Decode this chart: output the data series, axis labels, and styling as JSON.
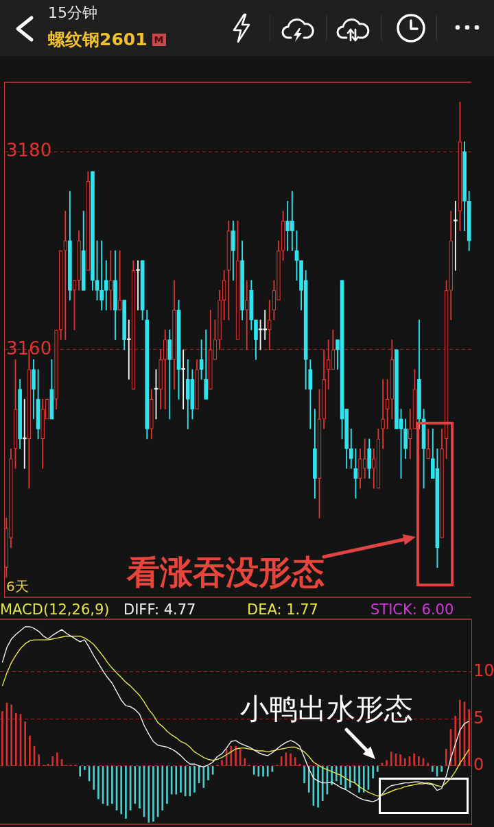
{
  "chart_data": [
    {
      "type": "candlestick",
      "title": "螺纹钢2601",
      "subtitle": "15分钟",
      "categories": [
        null,
        null,
        null,
        null,
        null,
        null,
        null,
        null,
        null,
        null,
        null,
        null,
        null,
        null,
        null,
        null,
        null,
        null,
        null,
        null,
        null,
        null,
        null,
        null,
        null,
        null,
        null,
        null,
        null,
        null,
        null,
        null,
        null,
        null,
        null,
        null,
        null,
        null,
        null,
        null,
        null,
        null,
        null,
        null,
        null,
        null,
        null,
        null,
        null,
        null,
        null,
        null,
        null,
        null,
        null,
        null,
        null,
        null,
        null,
        null,
        null,
        null,
        null,
        null,
        null,
        null,
        null,
        null,
        null,
        null,
        null,
        null,
        null,
        null,
        null,
        null,
        null,
        null,
        null,
        null,
        null,
        null,
        null,
        null,
        null,
        null,
        null,
        null,
        null,
        null,
        null,
        null,
        null,
        null,
        null,
        null,
        null,
        null,
        null,
        null,
        null,
        null,
        null
      ],
      "ohlc": [
        [
          3138,
          3143,
          3137,
          3142
        ],
        [
          3141,
          3150,
          3140,
          3149
        ],
        [
          3150,
          3159,
          3148,
          3154
        ],
        [
          3156,
          3157,
          3150,
          3151
        ],
        [
          3151,
          3155,
          3148,
          3151
        ],
        [
          3151,
          3160,
          3146,
          3158
        ],
        [
          3158,
          3159,
          3153,
          3156
        ],
        [
          3155,
          3158,
          3151,
          3152
        ],
        [
          3151,
          3155,
          3148,
          3154
        ],
        [
          3153,
          3155,
          3153,
          3155
        ],
        [
          3156,
          3159,
          3153,
          3153
        ],
        [
          3155,
          3162,
          3154,
          3162
        ],
        [
          3162,
          3170,
          3161,
          3170
        ],
        [
          3170,
          3174,
          3161,
          3171
        ],
        [
          3171,
          3176,
          3165,
          3166
        ],
        [
          3166,
          3167,
          3162,
          3167
        ],
        [
          3167,
          3172,
          3166,
          3171
        ],
        [
          3170,
          3174,
          3166,
          3166
        ],
        [
          3168,
          3178,
          3168,
          3177
        ],
        [
          3178,
          3178,
          3166,
          3167
        ],
        [
          3167,
          3171,
          3165,
          3166
        ],
        [
          3166,
          3171,
          3164,
          3165
        ],
        [
          3167,
          3169,
          3164,
          3166
        ],
        [
          3166,
          3170,
          3164,
          3167
        ],
        [
          3167,
          3170,
          3161,
          3164
        ],
        [
          3164,
          3170,
          3164,
          3165
        ],
        [
          3165,
          3165,
          3160,
          3161
        ],
        [
          3161,
          3163,
          3157,
          3161
        ],
        [
          3156,
          3169,
          3156,
          3168
        ],
        [
          3168,
          3169,
          3164,
          3168
        ],
        [
          3169,
          3169,
          3163,
          3164
        ],
        [
          3163,
          3164,
          3151,
          3152
        ],
        [
          3152,
          3156,
          3151,
          3155
        ],
        [
          3156,
          3158,
          3153,
          3156
        ],
        [
          3156,
          3160,
          3154,
          3159
        ],
        [
          3159,
          3162,
          3154,
          3161
        ],
        [
          3161,
          3162,
          3153,
          3159
        ],
        [
          3159,
          3167,
          3156,
          3164
        ],
        [
          3164,
          3165,
          3155,
          3158
        ],
        [
          3158,
          3160,
          3154,
          3158
        ],
        [
          3157,
          3159,
          3152,
          3155
        ],
        [
          3157,
          3158,
          3153,
          3154
        ],
        [
          3154,
          3159,
          3154,
          3158
        ],
        [
          3159,
          3161,
          3157,
          3158
        ],
        [
          3157,
          3162,
          3155,
          3155
        ],
        [
          3156,
          3164,
          3156,
          3160
        ],
        [
          3159,
          3163,
          3159,
          3161
        ],
        [
          3161,
          3166,
          3160,
          3165
        ],
        [
          3165,
          3168,
          3163,
          3167
        ],
        [
          3168,
          3173,
          3163,
          3172
        ],
        [
          3172,
          3173,
          3167,
          3170
        ],
        [
          3161,
          3173,
          3161,
          3169
        ],
        [
          3169,
          3171,
          3163,
          3164
        ],
        [
          3164,
          3167,
          3160,
          3165
        ],
        [
          3166,
          3167,
          3162,
          3163
        ],
        [
          3163,
          3163,
          3159,
          3161
        ],
        [
          3162,
          3163,
          3160,
          3162
        ],
        [
          3162,
          3164,
          3161,
          3162
        ],
        [
          3162,
          3165,
          3160,
          3163
        ],
        [
          3164,
          3167,
          3163,
          3166
        ],
        [
          3165,
          3171,
          3165,
          3170
        ],
        [
          3170,
          3174,
          3169,
          3173
        ],
        [
          3173,
          3175,
          3170,
          3172
        ],
        [
          3173,
          3176,
          3170,
          3172
        ],
        [
          3170,
          3172,
          3167,
          3169
        ],
        [
          3169,
          3169,
          3164,
          3166
        ],
        [
          3167,
          3168,
          3156,
          3159
        ],
        [
          3158,
          3159,
          3152,
          3156
        ],
        [
          3150,
          3154,
          3145,
          3147
        ],
        [
          3147,
          3156,
          3143,
          3153
        ],
        [
          3153,
          3160,
          3152,
          3157
        ],
        [
          3158,
          3161,
          3156,
          3159
        ],
        [
          3158,
          3162,
          3158,
          3160
        ],
        [
          3161,
          3161,
          3158,
          3160
        ],
        [
          3167,
          3167,
          3151,
          3153
        ],
        [
          3154,
          3154,
          3148,
          3150
        ],
        [
          3150,
          3152,
          3148,
          3149
        ],
        [
          3148,
          3150,
          3145,
          3147
        ],
        [
          3147,
          3150,
          3146,
          3149
        ],
        [
          3148,
          3151,
          3147,
          3149
        ],
        [
          3150,
          3151,
          3147,
          3148
        ],
        [
          3148,
          3150,
          3146,
          3149
        ],
        [
          3146,
          3152,
          3146,
          3151
        ],
        [
          3152,
          3157,
          3150,
          3153
        ],
        [
          3154,
          3157,
          3152,
          3155
        ],
        [
          3155,
          3161,
          3153,
          3159
        ],
        [
          3160,
          3160,
          3152,
          3152
        ],
        [
          3153,
          3154,
          3147,
          3152
        ],
        [
          3152,
          3153,
          3149,
          3150
        ],
        [
          3151,
          3154,
          3149,
          3152
        ],
        [
          3152,
          3158,
          3152,
          3156
        ],
        [
          3157,
          3163,
          3152,
          3153
        ],
        [
          3153,
          3154,
          3146,
          3150
        ],
        [
          3149,
          3152,
          3149,
          3150
        ],
        [
          3149,
          3152,
          3147,
          3147
        ],
        [
          3148,
          3150,
          3138,
          3140
        ],
        [
          3141,
          3152,
          3141,
          3150
        ],
        [
          3151,
          3167,
          3149,
          3166
        ],
        [
          3166,
          3174,
          3163,
          3171
        ],
        [
          3173,
          3175,
          3168,
          3173
        ],
        [
          3174,
          3185,
          3172,
          3181
        ],
        [
          3180,
          3181,
          3172,
          3175
        ],
        [
          3175,
          3176,
          3170,
          3171
        ]
      ],
      "ylim": [
        3135,
        3187
      ],
      "yticks": [
        3160,
        3180
      ],
      "grid": "y",
      "tick_labels": "y",
      "annotations": [
        "M",
        "6天",
        "看涨吞没形态"
      ]
    },
    {
      "type": "bar",
      "title": "MACD(12,26,9)",
      "categories": [
        null,
        null,
        null,
        null,
        null,
        null,
        null,
        null,
        null,
        null,
        null,
        null,
        null,
        null,
        null,
        null,
        null,
        null,
        null,
        null,
        null,
        null,
        null,
        null,
        null,
        null,
        null,
        null,
        null,
        null,
        null,
        null,
        null,
        null,
        null,
        null,
        null,
        null,
        null,
        null,
        null,
        null,
        null,
        null,
        null,
        null,
        null,
        null,
        null,
        null,
        null,
        null,
        null,
        null,
        null,
        null,
        null,
        null,
        null,
        null,
        null,
        null,
        null,
        null,
        null,
        null,
        null,
        null,
        null,
        null,
        null,
        null,
        null,
        null,
        null,
        null,
        null,
        null,
        null,
        null,
        null,
        null,
        null,
        null,
        null,
        null,
        null,
        null,
        null,
        null,
        null,
        null,
        null,
        null,
        null,
        null,
        null,
        null,
        null,
        null,
        null,
        null,
        null
      ],
      "series": [
        {
          "type": "bar",
          "values": [
            5.8,
            6.7,
            6.5,
            5.6,
            5.5,
            4.7,
            3.2,
            2.1,
            1.2,
            0.1,
            0.2,
            1.0,
            1.4,
            0.7,
            0.1,
            0.1,
            0.1,
            -1.1,
            -0.4,
            -1.6,
            -2.5,
            -3.5,
            -4.0,
            -4.2,
            -4.0,
            -4.7,
            -5.1,
            -5.6,
            -4.7,
            -4.0,
            -4.5,
            -5.4,
            -6.0,
            -5.9,
            -5.4,
            -4.7,
            -4.0,
            -3.0,
            -3.0,
            -2.8,
            -3.2,
            -3.2,
            -2.8,
            -1.8,
            -2.3,
            -1.5,
            -0.9,
            0.1,
            0.6,
            1.8,
            2.1,
            2.1,
            1.8,
            0.8,
            0.1,
            -0.9,
            -1.1,
            -1.1,
            -1.1,
            -0.6,
            0.1,
            1.0,
            1.4,
            1.3,
            0.9,
            0.2,
            -1.8,
            -2.8,
            -4.2,
            -4.4,
            -3.7,
            -3.0,
            -2.0,
            -1.6,
            -2.0,
            -2.5,
            -2.3,
            -1.8,
            -2.8,
            -2.8,
            -2.5,
            -1.3,
            -0.6,
            0.3,
            0.6,
            1.5,
            1.3,
            1.2,
            0.8,
            1.0,
            1.3,
            1.0,
            0.8,
            0.3,
            -0.6,
            -1.1,
            -0.6,
            1.8,
            3.9,
            5.3,
            7.0,
            6.8,
            6.0
          ],
          "colors": [
            "#d83030",
            "#d83030",
            "#d83030",
            "#d83030",
            "#d83030",
            "#d83030",
            "#d83030",
            "#d83030",
            "#d83030",
            "#d83030",
            "#d83030",
            "#d83030",
            "#d83030",
            "#d83030",
            "#d83030",
            "#d83030",
            "#d83030",
            "#4ccfd0",
            "#4ccfd0",
            "#4ccfd0",
            "#4ccfd0",
            "#4ccfd0",
            "#4ccfd0",
            "#4ccfd0",
            "#4ccfd0",
            "#4ccfd0",
            "#4ccfd0",
            "#4ccfd0",
            "#4ccfd0",
            "#4ccfd0",
            "#4ccfd0",
            "#4ccfd0",
            "#4ccfd0",
            "#4ccfd0",
            "#4ccfd0",
            "#4ccfd0",
            "#4ccfd0",
            "#4ccfd0",
            "#4ccfd0",
            "#4ccfd0",
            "#4ccfd0",
            "#4ccfd0",
            "#4ccfd0",
            "#4ccfd0",
            "#4ccfd0",
            "#4ccfd0",
            "#4ccfd0",
            "#d83030",
            "#d83030",
            "#d83030",
            "#d83030",
            "#d83030",
            "#d83030",
            "#d83030",
            "#d83030",
            "#4ccfd0",
            "#4ccfd0",
            "#4ccfd0",
            "#4ccfd0",
            "#4ccfd0",
            "#d83030",
            "#d83030",
            "#d83030",
            "#d83030",
            "#d83030",
            "#d83030",
            "#4ccfd0",
            "#4ccfd0",
            "#4ccfd0",
            "#4ccfd0",
            "#4ccfd0",
            "#4ccfd0",
            "#4ccfd0",
            "#4ccfd0",
            "#4ccfd0",
            "#4ccfd0",
            "#4ccfd0",
            "#4ccfd0",
            "#4ccfd0",
            "#4ccfd0",
            "#4ccfd0",
            "#4ccfd0",
            "#4ccfd0",
            "#d83030",
            "#d83030",
            "#d83030",
            "#d83030",
            "#d83030",
            "#d83030",
            "#d83030",
            "#d83030",
            "#d83030",
            "#d83030",
            "#d83030",
            "#4ccfd0",
            "#4ccfd0",
            "#4ccfd0",
            "#d83030",
            "#d83030",
            "#d83030",
            "#d83030",
            "#d83030",
            "#d83030"
          ]
        },
        {
          "type": "line",
          "name": "DIFF: 4.77",
          "color": "#f2f2f2",
          "values": [
            11.0,
            12.6,
            13.5,
            14.0,
            14.4,
            14.8,
            14.8,
            14.6,
            14.3,
            13.8,
            13.5,
            13.9,
            14.2,
            14.5,
            14.1,
            13.8,
            13.5,
            13.2,
            13.4,
            12.6,
            11.7,
            10.9,
            10.1,
            9.4,
            8.8,
            7.9,
            7.0,
            6.4,
            6.3,
            6.0,
            5.5,
            4.3,
            3.4,
            2.6,
            2.2,
            2.1,
            2.0,
            1.8,
            1.5,
            1.1,
            0.6,
            0.2,
            0.2,
            0.0,
            -0.1,
            0.1,
            0.4,
            1.0,
            1.3,
            1.9,
            2.6,
            2.7,
            2.4,
            2.2,
            2.0,
            1.7,
            1.4,
            1.2,
            1.1,
            1.4,
            1.8,
            2.2,
            2.5,
            2.7,
            2.5,
            2.1,
            0.9,
            -0.3,
            -1.3,
            -1.6,
            -1.8,
            -1.8,
            -1.7,
            -2.0,
            -2.3,
            -2.5,
            -2.8,
            -3.1,
            -3.4,
            -3.6,
            -3.7,
            -3.8,
            -3.6,
            -3.0,
            -2.4,
            -2.1,
            -2.0,
            -1.9,
            -1.8,
            -1.8,
            -1.7,
            -1.7,
            -1.8,
            -1.9,
            -2.0,
            -2.6,
            -2.4,
            -1.1,
            0.8,
            2.3,
            3.8,
            4.5,
            4.77
          ]
        },
        {
          "type": "line",
          "name": "DEA: 1.77",
          "color": "#e6e64c",
          "values": [
            8.5,
            9.9,
            11.0,
            11.8,
            12.5,
            13.0,
            13.3,
            13.4,
            13.4,
            13.4,
            13.4,
            13.5,
            13.6,
            13.7,
            13.8,
            13.8,
            13.8,
            13.8,
            13.6,
            13.3,
            12.9,
            12.3,
            11.7,
            11.0,
            10.4,
            9.9,
            9.4,
            8.9,
            8.5,
            8.0,
            7.5,
            6.8,
            6.0,
            5.4,
            4.6,
            4.2,
            3.7,
            3.3,
            3.0,
            2.6,
            2.4,
            2.0,
            1.5,
            1.2,
            0.9,
            0.7,
            0.6,
            0.7,
            0.9,
            1.2,
            1.5,
            1.8,
            1.9,
            1.9,
            1.8,
            1.7,
            1.6,
            1.6,
            1.5,
            1.6,
            1.7,
            1.8,
            1.9,
            2.0,
            2.0,
            1.8,
            1.5,
            1.0,
            0.4,
            0.1,
            -0.2,
            -0.4,
            -0.6,
            -0.8,
            -1.0,
            -1.3,
            -1.6,
            -1.8,
            -2.2,
            -2.5,
            -2.8,
            -3.0,
            -3.2,
            -3.1,
            -2.9,
            -2.7,
            -2.5,
            -2.4,
            -2.2,
            -2.1,
            -2.0,
            -1.9,
            -1.9,
            -1.8,
            -1.9,
            -2.1,
            -2.2,
            -1.8,
            -1.3,
            -0.6,
            0.3,
            1.0,
            1.77
          ]
        }
      ],
      "ylim": [
        -6.2,
        15.6
      ],
      "yticks": [
        0,
        5,
        10
      ],
      "grid": "y",
      "tick_labels": "y",
      "legend": "top left",
      "marker": "none",
      "annotations": [
        "STICK: 6.00",
        "小鸭出水形态"
      ]
    }
  ]
}
